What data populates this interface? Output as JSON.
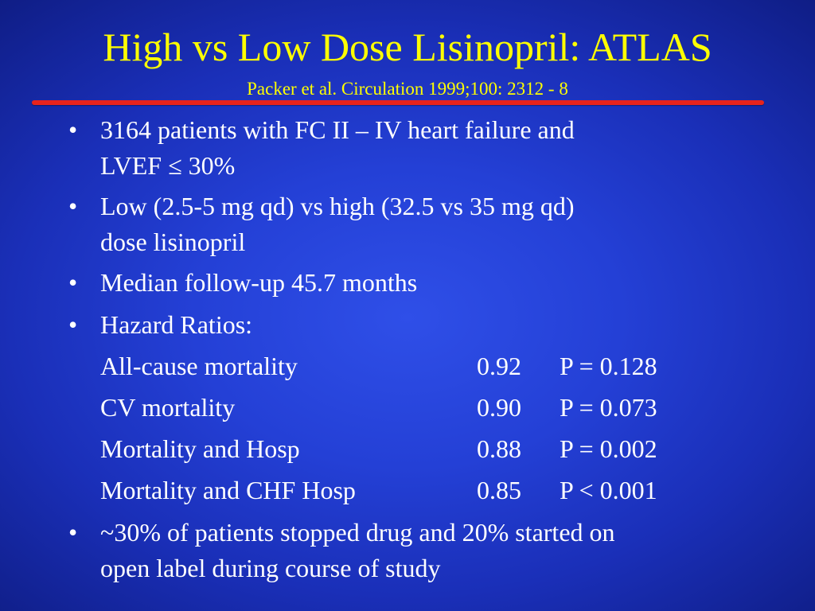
{
  "title": "High vs Low Dose Lisinopril: ATLAS",
  "subtitle": "Packer et al. Circulation 1999;100: 2312 - 8",
  "bullet_char": "•",
  "bullets": [
    {
      "line1": "3164 patients with FC II – IV heart failure and",
      "line2": "LVEF ≤ 30%"
    },
    {
      "line1": "Low (2.5-5 mg qd) vs high (32.5 vs 35 mg qd)",
      "line2": "dose lisinopril"
    },
    {
      "line1": "Median follow-up 45.7 months"
    },
    {
      "line1": "Hazard Ratios:"
    },
    {
      "line1": "~30% of patients stopped drug and 20% started on",
      "line2": "open label during course of study"
    }
  ],
  "hazard_ratios": [
    {
      "outcome": "All-cause mortality",
      "hr": "0.92",
      "p": "P = 0.128"
    },
    {
      "outcome": "CV mortality",
      "hr": "0.90",
      "p": "P = 0.073"
    },
    {
      "outcome": "Mortality and Hosp",
      "hr": "0.88",
      "p": "P = 0.002"
    },
    {
      "outcome": "Mortality and CHF Hosp",
      "hr": "0.85",
      "p": "P < 0.001"
    }
  ],
  "colors": {
    "background": "#2440d6",
    "title": "#ffff00",
    "rule": "#e8231c",
    "body_text": "#ffffff"
  }
}
